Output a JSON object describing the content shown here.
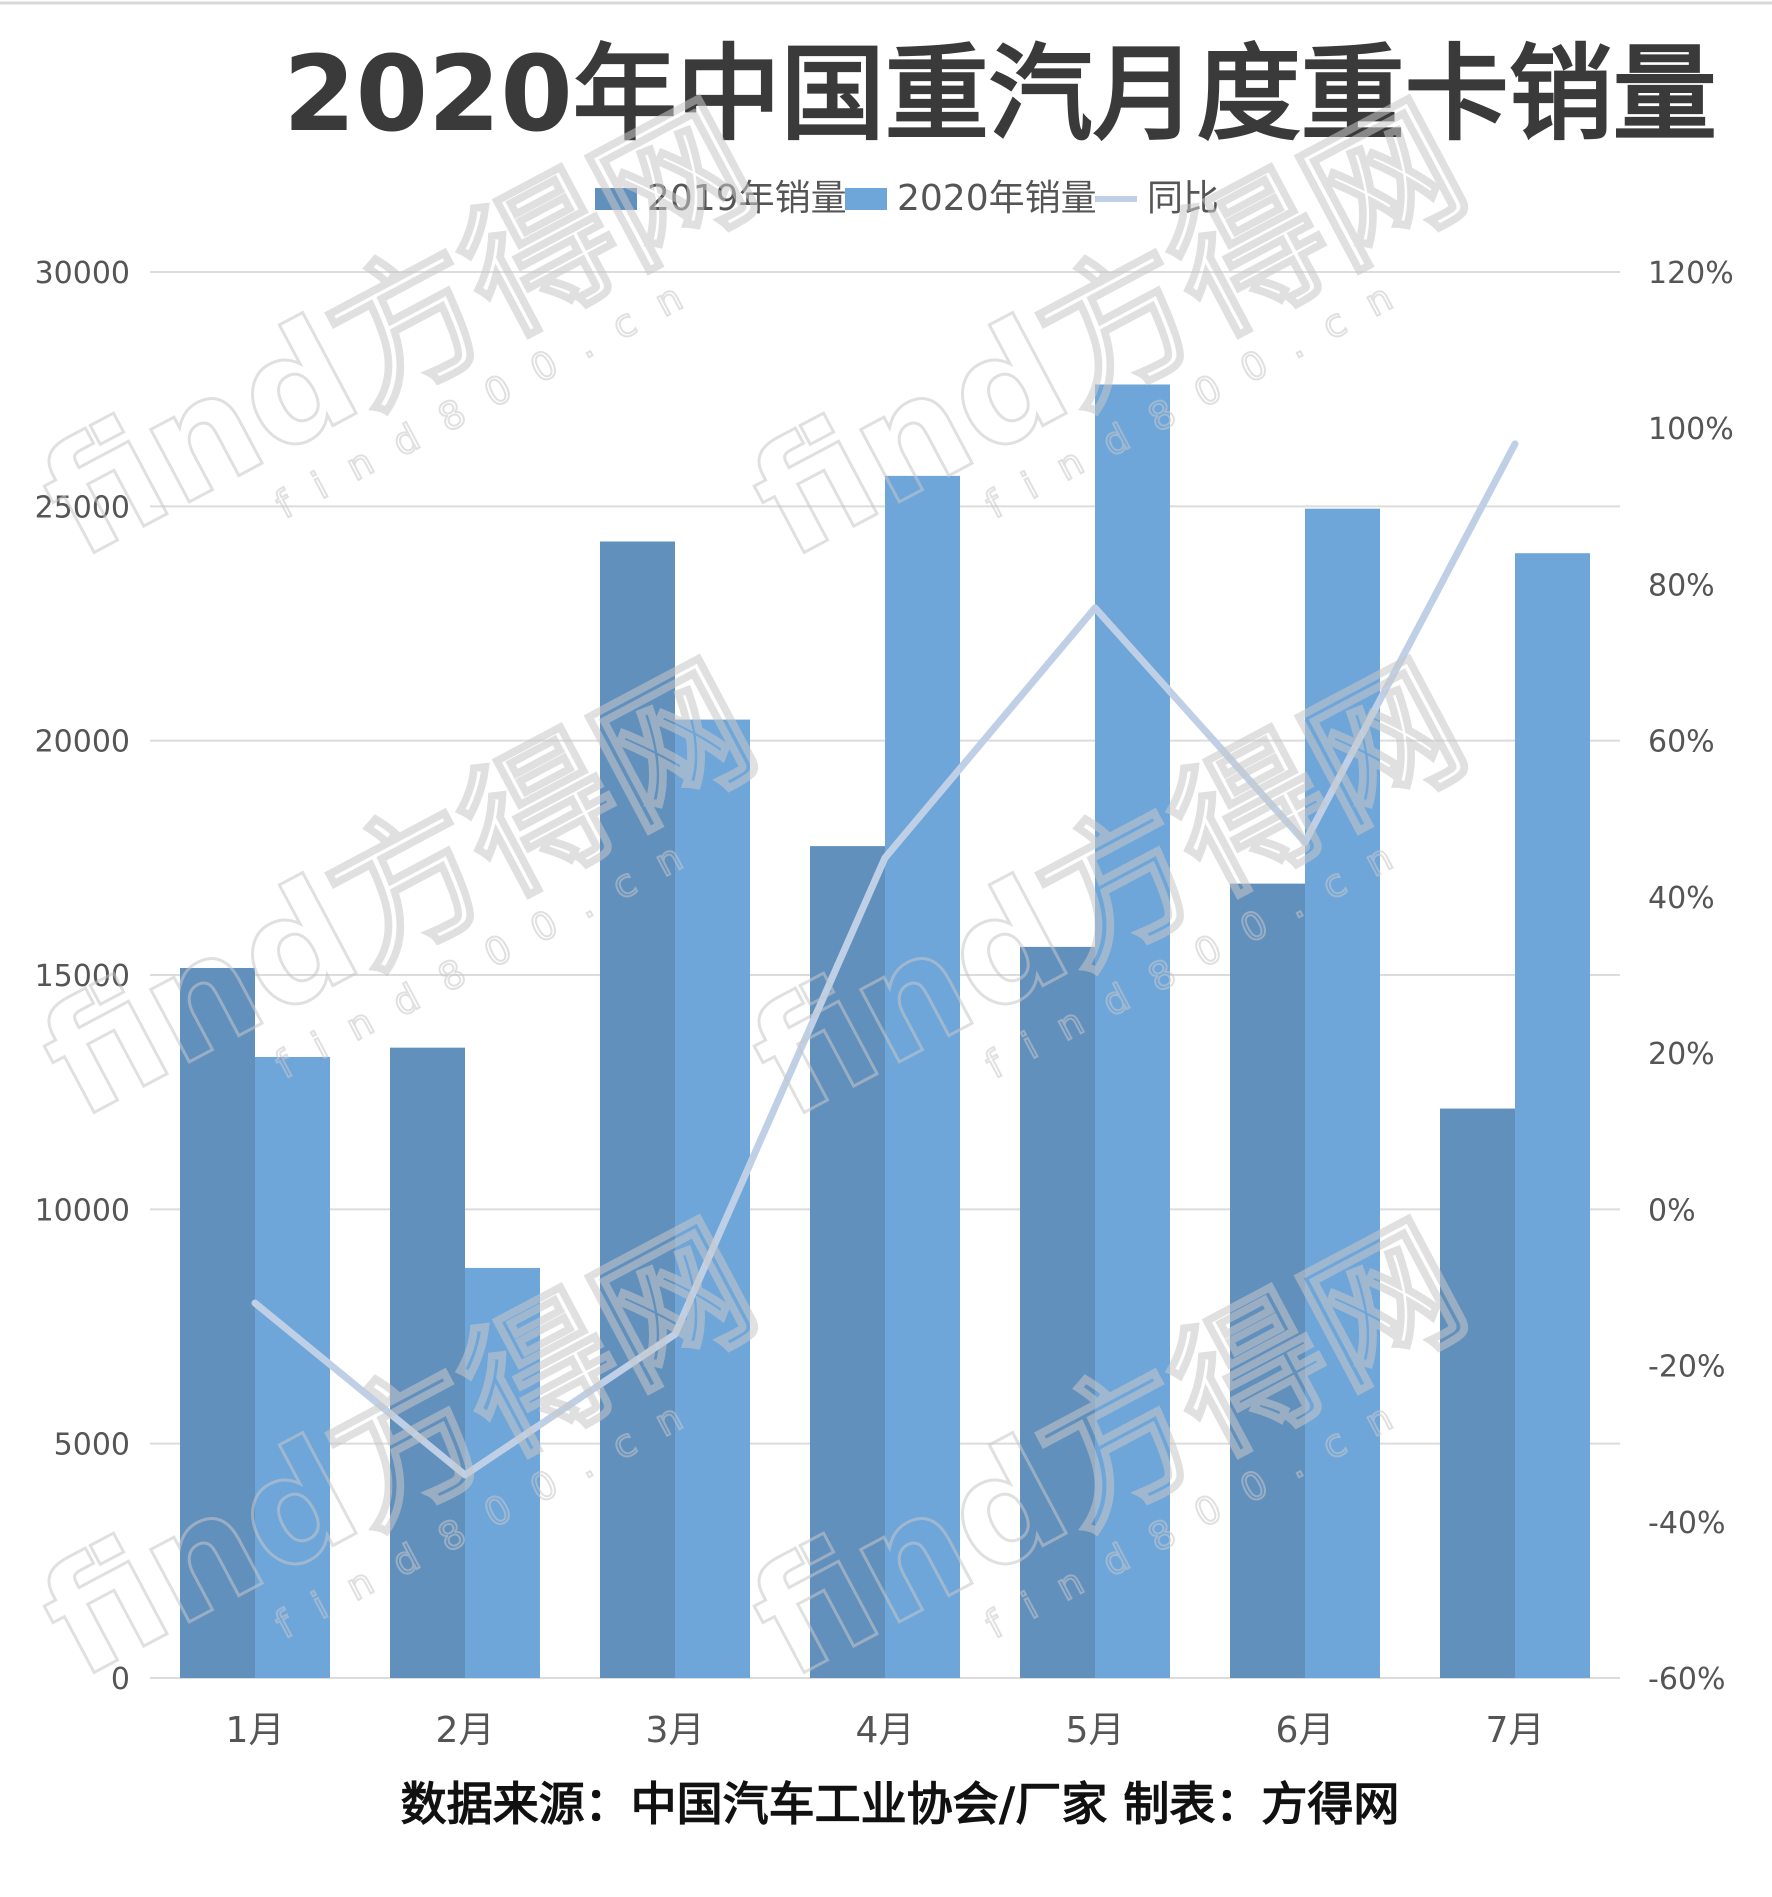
{
  "chart_data": {
    "type": "bar",
    "title": "2020年中国重汽月度重卡销量",
    "categories": [
      "1月",
      "2月",
      "3月",
      "4月",
      "5月",
      "6月",
      "7月"
    ],
    "series": [
      {
        "name": "2019年销量",
        "type": "bar",
        "axis": "left",
        "color": "#6290bd",
        "values": [
          15150,
          13450,
          24250,
          17750,
          15600,
          16950,
          12150
        ]
      },
      {
        "name": "2020年销量",
        "type": "bar",
        "axis": "left",
        "color": "#6ea6da",
        "values": [
          13250,
          8750,
          20450,
          25650,
          27600,
          24950,
          24000
        ]
      },
      {
        "name": "同比",
        "type": "line",
        "axis": "right",
        "color": "#bfd0e6",
        "values": [
          -12,
          -34,
          -16,
          45,
          77,
          47,
          98
        ]
      }
    ],
    "y_left": {
      "ylim": [
        0,
        30000
      ],
      "ticks": [
        "0",
        "5000",
        "10000",
        "15000",
        "20000",
        "25000",
        "30000"
      ]
    },
    "y_right": {
      "ylim": [
        -60,
        120
      ],
      "ticks": [
        "-60%",
        "-40%",
        "-20%",
        "0%",
        "20%",
        "40%",
        "60%",
        "80%",
        "100%",
        "120%"
      ]
    },
    "grid": true,
    "legend": "top-center"
  },
  "watermark": {
    "text": "find方得网",
    "sub": "find800.cn"
  },
  "footer": {
    "source": "数据来源：中国汽车工业协会/厂家 制表：方得网"
  }
}
